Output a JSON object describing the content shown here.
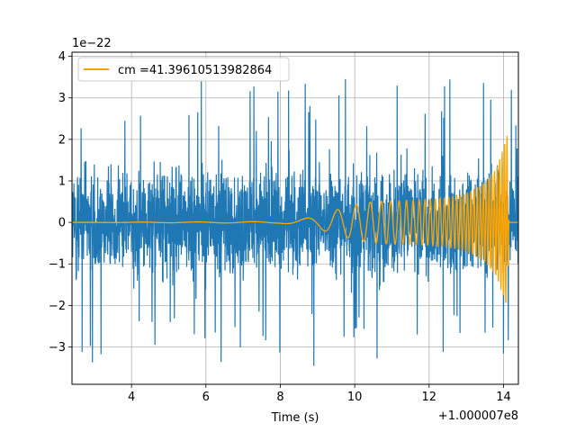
{
  "chart_data": {
    "type": "line",
    "title": "",
    "xlabel": "Time (s)",
    "ylabel": "",
    "xlim": [
      2.4,
      14.4
    ],
    "ylim": [
      -3.9,
      4.1
    ],
    "x_ticks": [
      4,
      6,
      8,
      10,
      12,
      14
    ],
    "x_tick_labels": [
      "4",
      "6",
      "8",
      "10",
      "12",
      "14"
    ],
    "y_ticks": [
      -3,
      -2,
      -1,
      0,
      1,
      2,
      3,
      4
    ],
    "y_tick_labels": [
      "−3",
      "−2",
      "−1",
      "0",
      "1",
      "2",
      "3",
      "4"
    ],
    "y_scale_label": "1e−22",
    "x_offset_label": "+1.000007e8",
    "grid": true,
    "legend_position": "top-left",
    "series": [
      {
        "name": "",
        "color": "#1f77b4",
        "kind": "noisy strain data, amplitude roughly ±2 with spikes to ±3.5",
        "x_range": [
          2.4,
          14.4
        ],
        "typical_amplitude": 2.0,
        "peak_amplitude": 3.5
      },
      {
        "name": "cm =41.39610513982864",
        "color": "#ffa500",
        "kind": "chirp template",
        "envelope": [
          {
            "x": 2.4,
            "y": 0.0
          },
          {
            "x": 8.0,
            "y": 0.02
          },
          {
            "x": 8.5,
            "y": 0.07
          },
          {
            "x": 9.0,
            "y": 0.15
          },
          {
            "x": 9.5,
            "y": 0.3
          },
          {
            "x": 10.0,
            "y": 0.42
          },
          {
            "x": 10.5,
            "y": 0.5
          },
          {
            "x": 11.0,
            "y": 0.52
          },
          {
            "x": 12.0,
            "y": 0.55
          },
          {
            "x": 12.5,
            "y": 0.6
          },
          {
            "x": 13.0,
            "y": 0.7
          },
          {
            "x": 13.5,
            "y": 0.95
          },
          {
            "x": 13.8,
            "y": 1.3
          },
          {
            "x": 14.0,
            "y": 1.8
          },
          {
            "x": 14.1,
            "y": 2.1
          },
          {
            "x": 14.15,
            "y": 0.0
          },
          {
            "x": 14.4,
            "y": 0.0
          }
        ]
      }
    ]
  }
}
